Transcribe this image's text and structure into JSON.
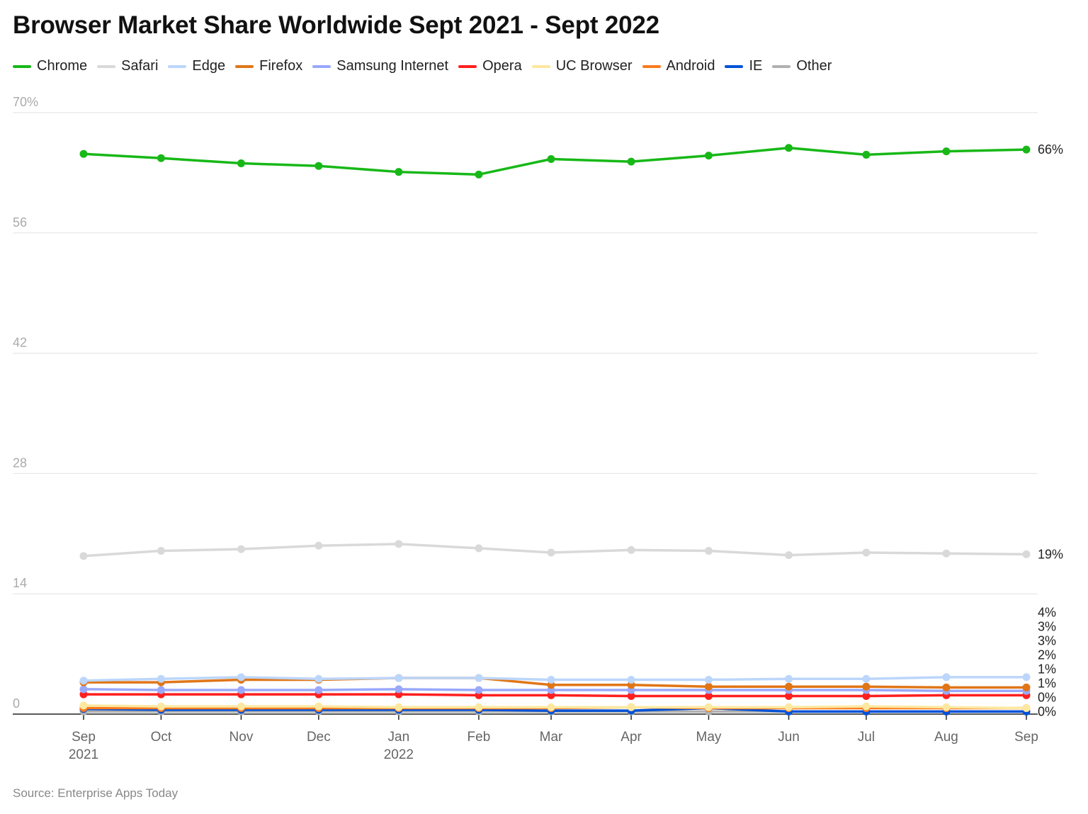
{
  "chart_data": {
    "type": "line",
    "title": "Browser Market Share Worldwide Sept 2021 - Sept 2022",
    "source": "Source: Enterprise Apps Today",
    "xlabel": "",
    "ylabel": "",
    "ylim": [
      0,
      70
    ],
    "grid": true,
    "legend_position": "top-left",
    "y_ticks": [
      {
        "value": 70,
        "label": "70%"
      },
      {
        "value": 56,
        "label": "56"
      },
      {
        "value": 42,
        "label": "42"
      },
      {
        "value": 28,
        "label": "28"
      },
      {
        "value": 14,
        "label": "14"
      },
      {
        "value": 0,
        "label": "0"
      }
    ],
    "x": [
      "2021-09-01",
      "2021-10-01",
      "2021-11-01",
      "2021-12-01",
      "2022-01-01",
      "2022-02-01",
      "2022-03-01",
      "2022-04-01",
      "2022-05-01",
      "2022-06-01",
      "2022-07-01",
      "2022-08-01",
      "2022-09-01"
    ],
    "x_tick_labels": [
      [
        "Sep",
        "2021"
      ],
      [
        "Oct",
        ""
      ],
      [
        "Nov",
        ""
      ],
      [
        "Dec",
        ""
      ],
      [
        "Jan",
        "2022"
      ],
      [
        "Feb",
        ""
      ],
      [
        "Mar",
        ""
      ],
      [
        "Apr",
        ""
      ],
      [
        "May",
        ""
      ],
      [
        "Jun",
        ""
      ],
      [
        "Jul",
        ""
      ],
      [
        "Aug",
        ""
      ],
      [
        "Sep",
        ""
      ]
    ],
    "series": [
      {
        "name": "Chrome",
        "color": "#17b817",
        "end_label": "66%",
        "values": [
          65.2,
          64.7,
          64.1,
          63.8,
          63.1,
          62.8,
          64.6,
          64.3,
          65.0,
          65.9,
          65.1,
          65.5,
          65.7
        ]
      },
      {
        "name": "Safari",
        "color": "#d9d9d9",
        "end_label": "19%",
        "values": [
          18.4,
          19.0,
          19.2,
          19.6,
          19.8,
          19.3,
          18.8,
          19.1,
          19.0,
          18.5,
          18.8,
          18.7,
          18.6
        ]
      },
      {
        "name": "Edge",
        "color": "#bcd6fb",
        "end_label": "4%",
        "values": [
          3.9,
          4.1,
          4.3,
          4.1,
          4.2,
          4.2,
          4.0,
          4.0,
          4.0,
          4.1,
          4.1,
          4.3,
          4.3
        ]
      },
      {
        "name": "Firefox",
        "color": "#e07617",
        "end_label": "3%",
        "values": [
          3.7,
          3.7,
          4.0,
          4.0,
          4.2,
          4.2,
          3.4,
          3.4,
          3.2,
          3.2,
          3.2,
          3.1,
          3.1
        ]
      },
      {
        "name": "Samsung Internet",
        "color": "#99a8fb",
        "end_label": "3%",
        "values": [
          2.9,
          2.8,
          2.8,
          2.8,
          2.9,
          2.8,
          2.8,
          2.8,
          2.8,
          2.8,
          2.8,
          2.7,
          2.7
        ]
      },
      {
        "name": "Opera",
        "color": "#ff1f1f",
        "end_label": "2%",
        "values": [
          2.3,
          2.3,
          2.3,
          2.3,
          2.3,
          2.2,
          2.2,
          2.1,
          2.1,
          2.1,
          2.1,
          2.2,
          2.2
        ]
      },
      {
        "name": "UC Browser",
        "color": "#fce8a0",
        "end_label": "1%",
        "values": [
          1.0,
          0.9,
          0.9,
          0.9,
          0.8,
          0.8,
          0.8,
          0.8,
          0.8,
          0.8,
          0.9,
          0.8,
          0.7
        ]
      },
      {
        "name": "Android",
        "color": "#fb7a1e",
        "end_label": "1%",
        "values": [
          0.7,
          0.7,
          0.7,
          0.7,
          0.7,
          0.7,
          0.7,
          0.8,
          0.7,
          0.7,
          0.7,
          0.7,
          0.7
        ]
      },
      {
        "name": "IE",
        "color": "#0052d9",
        "end_label": "0%",
        "values": [
          0.6,
          0.5,
          0.5,
          0.5,
          0.5,
          0.5,
          0.4,
          0.4,
          0.7,
          0.3,
          0.3,
          0.3,
          0.3
        ]
      },
      {
        "name": "Other",
        "color": "#b0b0b0",
        "end_label": "0%",
        "values": [
          0.3,
          0.3,
          0.3,
          0.3,
          0.3,
          0.3,
          0.3,
          0.3,
          0.3,
          0.3,
          0.3,
          0.3,
          0.3
        ]
      }
    ]
  }
}
